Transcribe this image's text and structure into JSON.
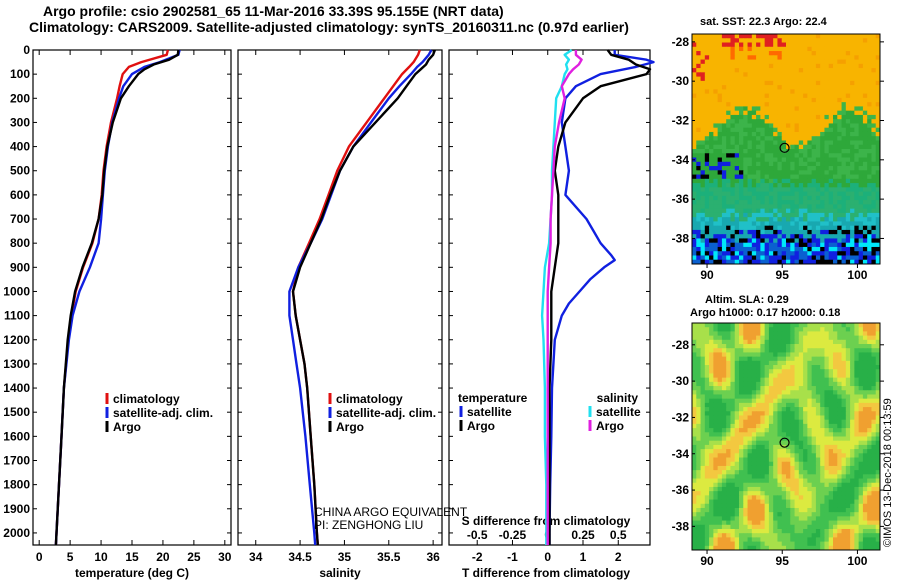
{
  "title_line1": "Argo profile: csio 2902581_65 11-Mar-2016 33.39S 95.155E (NRT data)",
  "title_line2": "Climatology: CARS2009. Satellite-adjusted climatology: synTS_20160311.nc (0.97d earlier)",
  "colors": {
    "climatology": "#e01010",
    "satellite": "#1020e0",
    "argo": "#000000",
    "sat_salinity": "#20e0f0",
    "argo_salinity": "#e020e0"
  },
  "legend_profiles": {
    "climatology": "climatology",
    "satellite": "satellite-adj. clim.",
    "argo": "Argo"
  },
  "legend_diff": {
    "temperature": "temperature",
    "salinity": "salinity",
    "satellite": "satellite",
    "argo": "Argo"
  },
  "note": {
    "line1": "CHINA ARGO EQUIVALENT",
    "line2": "PI: ZENGHONG LIU"
  },
  "sst_title": "sat. SST: 22.3 Argo: 22.4",
  "sla_title1": "Altim. SLA: 0.29",
  "sla_title2": "Argo h1000: 0.17 h2000: 0.18",
  "credit": "©IMOS 13-Dec-2018 00:13:59",
  "chart_data": [
    {
      "type": "line",
      "name": "temperature-profile",
      "xlabel": "temperature (deg C)",
      "ylabel": "",
      "xlim": [
        -1,
        31
      ],
      "ylim": [
        2050,
        0
      ],
      "xticks": [
        0,
        5,
        10,
        15,
        20,
        25,
        30
      ],
      "yticks": [
        0,
        100,
        200,
        300,
        400,
        500,
        600,
        700,
        800,
        900,
        1000,
        1100,
        1200,
        1300,
        1400,
        1500,
        1600,
        1700,
        1800,
        1900,
        2000
      ],
      "series": [
        {
          "name": "climatology",
          "color": "#e01010",
          "depth": [
            0,
            20,
            50,
            70,
            100,
            150,
            200,
            300,
            400,
            500,
            600,
            700,
            800,
            900,
            1000,
            1100,
            1200,
            1400,
            1600,
            1800,
            2000,
            2050
          ],
          "values": [
            20.8,
            20.6,
            16.5,
            14.5,
            13.5,
            13.0,
            12.6,
            11.6,
            10.9,
            10.4,
            10.1,
            9.6,
            8.6,
            7.1,
            5.9,
            5.2,
            4.7,
            4.0,
            3.6,
            3.2,
            2.8,
            2.7
          ]
        },
        {
          "name": "satellite-adj. clim.",
          "color": "#1020e0",
          "depth": [
            0,
            20,
            50,
            70,
            100,
            150,
            200,
            300,
            400,
            500,
            600,
            700,
            800,
            900,
            1000,
            1100,
            1200,
            1400,
            1600,
            1800,
            2000,
            2050
          ],
          "values": [
            22.7,
            22.5,
            19.5,
            17.0,
            15.0,
            13.6,
            12.9,
            11.8,
            11.1,
            10.6,
            10.3,
            10.0,
            9.6,
            8.2,
            6.5,
            5.4,
            4.8,
            4.0,
            3.6,
            3.2,
            2.8,
            2.7
          ]
        },
        {
          "name": "Argo",
          "color": "#000000",
          "depth": [
            0,
            20,
            40,
            60,
            80,
            100,
            150,
            200,
            300,
            400,
            500,
            600,
            700,
            800,
            900,
            1000,
            1100,
            1200,
            1400,
            1600,
            1800,
            2000,
            2050
          ],
          "values": [
            22.5,
            22.4,
            21.0,
            18.5,
            17.0,
            16.0,
            14.5,
            13.2,
            11.9,
            11.0,
            10.5,
            10.2,
            9.6,
            8.5,
            7.0,
            5.8,
            5.1,
            4.6,
            4.0,
            3.6,
            3.2,
            2.8,
            2.7
          ]
        }
      ]
    },
    {
      "type": "line",
      "name": "salinity-profile",
      "xlabel": "salinity",
      "ylabel": "",
      "xlim": [
        33.8,
        36.1
      ],
      "ylim": [
        2050,
        0
      ],
      "xticks": [
        34,
        34.5,
        35,
        35.5,
        36
      ],
      "series": [
        {
          "name": "climatology",
          "color": "#e01010",
          "depth": [
            0,
            20,
            50,
            70,
            100,
            150,
            200,
            300,
            400,
            500,
            600,
            700,
            800,
            900,
            1000,
            1100,
            1200,
            1300,
            1400,
            1600,
            1800,
            2000,
            2050
          ],
          "values": [
            35.85,
            35.83,
            35.78,
            35.73,
            35.65,
            35.55,
            35.45,
            35.25,
            35.05,
            34.92,
            34.82,
            34.72,
            34.6,
            34.48,
            34.42,
            34.45,
            34.5,
            34.55,
            34.58,
            34.62,
            34.66,
            34.69,
            34.7
          ]
        },
        {
          "name": "satellite-adj. clim.",
          "color": "#1020e0",
          "depth": [
            0,
            20,
            50,
            70,
            100,
            150,
            200,
            300,
            400,
            500,
            600,
            700,
            800,
            900,
            1000,
            1100,
            1200,
            1300,
            1400,
            1600,
            1800,
            2000,
            2050
          ],
          "values": [
            35.98,
            35.95,
            35.88,
            35.82,
            35.75,
            35.62,
            35.5,
            35.3,
            35.1,
            34.95,
            34.85,
            34.75,
            34.62,
            34.48,
            34.38,
            34.38,
            34.42,
            34.46,
            34.5,
            34.56,
            34.61,
            34.66,
            34.67
          ]
        },
        {
          "name": "Argo",
          "color": "#000000",
          "depth": [
            0,
            20,
            40,
            60,
            80,
            100,
            150,
            200,
            300,
            400,
            500,
            600,
            700,
            800,
            900,
            1000,
            1100,
            1200,
            1300,
            1400,
            1600,
            1800,
            2000,
            2050
          ],
          "values": [
            36.02,
            36.0,
            35.95,
            35.92,
            35.86,
            35.8,
            35.7,
            35.6,
            35.35,
            35.1,
            34.95,
            34.84,
            34.74,
            34.62,
            34.5,
            34.42,
            34.45,
            34.5,
            34.55,
            34.58,
            34.62,
            34.66,
            34.69,
            34.7
          ]
        }
      ]
    },
    {
      "type": "line",
      "name": "difference-profile",
      "xlabel": "T difference from climatology",
      "x2label": "S difference from climatology",
      "xlim": [
        -2.8,
        2.9
      ],
      "xticks": [
        -2,
        -1,
        0,
        1,
        2
      ],
      "x2lim": [
        -0.7,
        0.725
      ],
      "x2ticks": [
        -0.5,
        -0.25,
        0,
        0.25,
        0.5
      ],
      "x2ticklabels": [
        "-0.5",
        "-0.25",
        "0",
        "0.25",
        "0.5"
      ],
      "ylim": [
        2050,
        0
      ],
      "series": [
        {
          "name": "temperature satellite",
          "color": "#1020e0",
          "axis": "T",
          "depth": [
            0,
            20,
            40,
            50,
            70,
            100,
            150,
            200,
            300,
            400,
            500,
            600,
            700,
            750,
            800,
            850,
            870,
            900,
            950,
            1000,
            1050,
            1100,
            1200,
            1400,
            1600,
            1800,
            2000,
            2050
          ],
          "values": [
            1.9,
            1.9,
            2.8,
            3.0,
            2.5,
            1.5,
            0.8,
            0.5,
            0.4,
            0.5,
            0.6,
            0.5,
            1.1,
            1.3,
            1.5,
            1.8,
            1.9,
            1.6,
            1.2,
            0.9,
            0.6,
            0.4,
            0.2,
            0.12,
            0.1,
            0.07,
            0.05,
            0.05
          ]
        },
        {
          "name": "temperature Argo",
          "color": "#000000",
          "axis": "T",
          "depth": [
            0,
            20,
            40,
            60,
            80,
            100,
            150,
            200,
            300,
            400,
            500,
            600,
            700,
            800,
            900,
            1000,
            1100,
            1200,
            1400,
            1600,
            1800,
            2000,
            2050
          ],
          "values": [
            1.7,
            1.8,
            2.3,
            2.5,
            2.9,
            2.8,
            1.5,
            1.0,
            0.5,
            0.3,
            0.2,
            0.3,
            0.3,
            0.3,
            0.2,
            0.1,
            0.1,
            0.1,
            0.05,
            0.05,
            0.05,
            0.05,
            0.05
          ]
        },
        {
          "name": "salinity satellite",
          "color": "#20e0f0",
          "axis": "S",
          "depth": [
            0,
            20,
            40,
            60,
            80,
            100,
            150,
            200,
            300,
            400,
            500,
            600,
            700,
            800,
            900,
            1000,
            1100,
            1200,
            1400,
            1600,
            1800,
            2000,
            2050
          ],
          "values": [
            0.17,
            0.12,
            0.15,
            0.13,
            0.14,
            0.12,
            0.1,
            0.06,
            0.05,
            0.04,
            0.03,
            0.03,
            0.02,
            0.01,
            -0.02,
            -0.03,
            -0.04,
            -0.03,
            -0.02,
            -0.02,
            -0.01,
            -0.01,
            -0.01
          ]
        },
        {
          "name": "salinity Argo",
          "color": "#e020e0",
          "axis": "S",
          "depth": [
            0,
            20,
            40,
            60,
            80,
            100,
            150,
            200,
            300,
            400,
            500,
            600,
            700,
            800,
            900,
            1000,
            1100,
            1200,
            1400,
            1600,
            1800,
            2000,
            2050
          ],
          "values": [
            0.2,
            0.2,
            0.24,
            0.22,
            0.18,
            0.15,
            0.1,
            0.12,
            0.08,
            0.05,
            0.04,
            0.03,
            0.02,
            0.02,
            0.01,
            0.0,
            0.0,
            0.0,
            0.0,
            0.0,
            0.0,
            0.0,
            0.0
          ]
        }
      ]
    },
    {
      "type": "heatmap",
      "name": "sst-map",
      "title": "sat. SST: 22.3 Argo: 22.4",
      "xlim": [
        89,
        101.5
      ],
      "ylim": [
        -39.3,
        -27.6
      ],
      "xticks": [
        90,
        95,
        100
      ],
      "yticks": [
        -28,
        -30,
        -32,
        -34,
        -36,
        -38
      ],
      "marker": {
        "lon": 95.155,
        "lat": -33.39
      }
    },
    {
      "type": "heatmap",
      "name": "sla-map",
      "title": "Altim. SLA: 0.29",
      "subtitle": "Argo h1000: 0.17 h2000: 0.18",
      "xlim": [
        89,
        101.5
      ],
      "ylim": [
        -39.3,
        -26.8
      ],
      "xticks": [
        90,
        95,
        100
      ],
      "yticks": [
        -28,
        -30,
        -32,
        -34,
        -36,
        -38
      ],
      "marker": {
        "lon": 95.155,
        "lat": -33.39
      }
    }
  ]
}
